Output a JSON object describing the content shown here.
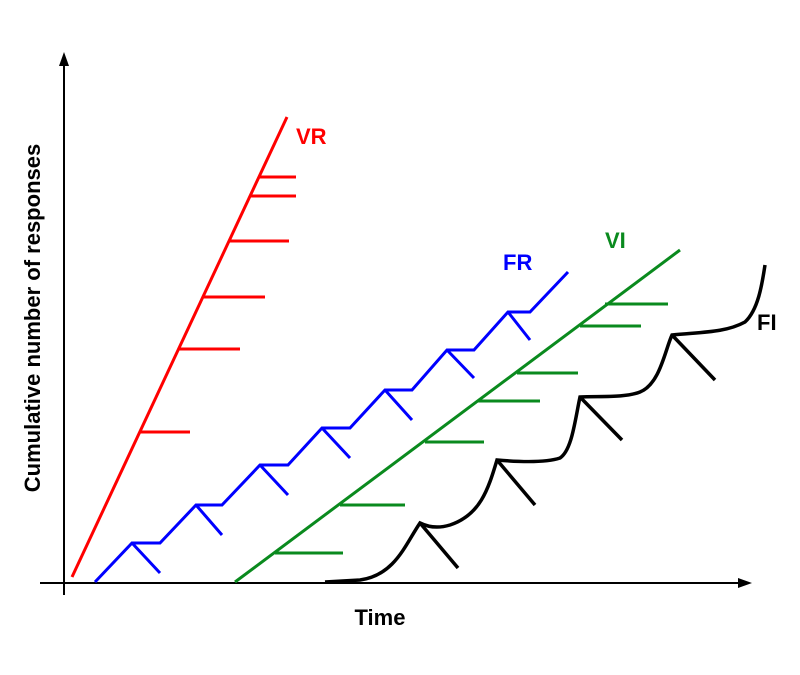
{
  "axes": {
    "y_label": "Cumulative number of responses",
    "x_label": "Time"
  },
  "curves": [
    {
      "label": "VR"
    },
    {
      "label": "FR"
    },
    {
      "label": "VI"
    },
    {
      "label": "FI"
    }
  ]
}
